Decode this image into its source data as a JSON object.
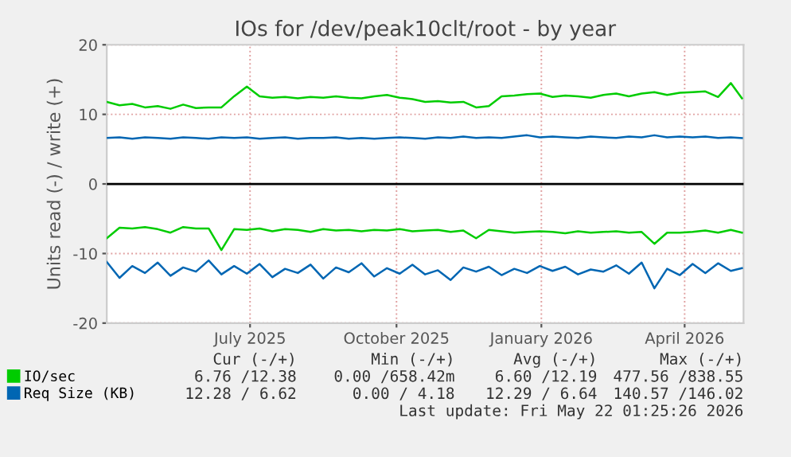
{
  "chart_data": {
    "type": "line",
    "title": "IOs for /dev/peak10clt/root - by year",
    "ylabel": "Units read (-) / write (+)",
    "x": [
      "2025-04-17",
      "2025-04-25",
      "2025-05-03",
      "2025-05-11",
      "2025-05-19",
      "2025-05-27",
      "2025-06-04",
      "2025-06-12",
      "2025-06-20",
      "2025-06-28",
      "2025-07-06",
      "2025-07-14",
      "2025-07-22",
      "2025-07-30",
      "2025-08-07",
      "2025-08-15",
      "2025-08-23",
      "2025-08-31",
      "2025-09-08",
      "2025-09-16",
      "2025-09-24",
      "2025-10-02",
      "2025-10-10",
      "2025-10-18",
      "2025-10-26",
      "2025-11-03",
      "2025-11-11",
      "2025-11-19",
      "2025-11-27",
      "2025-12-05",
      "2025-12-13",
      "2025-12-21",
      "2025-12-29",
      "2026-01-06",
      "2026-01-14",
      "2026-01-22",
      "2026-01-30",
      "2026-02-07",
      "2026-02-15",
      "2026-02-23",
      "2026-03-03",
      "2026-03-11",
      "2026-03-19",
      "2026-03-27",
      "2026-04-04",
      "2026-04-12",
      "2026-04-20",
      "2026-04-28",
      "2026-05-06",
      "2026-05-14",
      "2026-05-21"
    ],
    "series": [
      {
        "name": "IO/sec",
        "color": "#00cc00",
        "values": [
          11.8,
          11.3,
          11.5,
          11.0,
          11.2,
          10.8,
          11.4,
          10.9,
          11.0,
          11.0,
          12.6,
          14.0,
          12.6,
          12.4,
          12.5,
          12.3,
          12.5,
          12.4,
          12.6,
          12.4,
          12.3,
          12.6,
          12.8,
          12.4,
          12.2,
          11.8,
          11.9,
          11.7,
          11.8,
          11.0,
          11.2,
          12.6,
          12.7,
          12.9,
          13.0,
          12.5,
          12.7,
          12.6,
          12.4,
          12.8,
          13.0,
          12.6,
          13.0,
          13.2,
          12.8,
          13.1,
          13.2,
          13.3,
          12.5,
          14.5,
          12.3
        ]
      },
      {
        "color": "#00cc00",
        "values": [
          -7.8,
          -6.3,
          -6.4,
          -6.2,
          -6.5,
          -7.0,
          -6.2,
          -6.4,
          -6.4,
          -9.5,
          -6.5,
          -6.6,
          -6.4,
          -6.8,
          -6.5,
          -6.6,
          -6.9,
          -6.5,
          -6.7,
          -6.6,
          -6.8,
          -6.6,
          -6.7,
          -6.5,
          -6.8,
          -6.7,
          -6.6,
          -6.9,
          -6.7,
          -7.8,
          -6.6,
          -6.8,
          -7.0,
          -6.9,
          -6.8,
          -6.9,
          -7.1,
          -6.8,
          -7.0,
          -6.9,
          -6.8,
          -7.0,
          -6.9,
          -8.6,
          -7.0,
          -7.0,
          -6.9,
          -6.7,
          -7.0,
          -6.6,
          -7.0
        ]
      },
      {
        "name": "Req Size (KB)",
        "color": "#0066b3",
        "values": [
          6.6,
          6.7,
          6.5,
          6.7,
          6.6,
          6.5,
          6.7,
          6.6,
          6.5,
          6.7,
          6.6,
          6.7,
          6.5,
          6.6,
          6.7,
          6.5,
          6.6,
          6.6,
          6.7,
          6.5,
          6.6,
          6.5,
          6.6,
          6.7,
          6.6,
          6.5,
          6.7,
          6.6,
          6.8,
          6.6,
          6.7,
          6.6,
          6.8,
          7.0,
          6.7,
          6.8,
          6.7,
          6.6,
          6.8,
          6.7,
          6.6,
          6.8,
          6.7,
          7.0,
          6.7,
          6.8,
          6.7,
          6.8,
          6.6,
          6.7,
          6.6
        ]
      },
      {
        "color": "#0066b3",
        "values": [
          -11.2,
          -13.5,
          -11.8,
          -12.8,
          -11.3,
          -13.2,
          -12.0,
          -12.6,
          -11.0,
          -13.0,
          -11.8,
          -12.9,
          -11.5,
          -13.4,
          -12.2,
          -12.8,
          -11.6,
          -13.6,
          -12.0,
          -12.7,
          -11.4,
          -13.3,
          -12.1,
          -12.9,
          -11.6,
          -13.0,
          -12.4,
          -13.8,
          -12.0,
          -12.6,
          -11.9,
          -13.1,
          -12.2,
          -12.8,
          -11.8,
          -12.5,
          -11.9,
          -13.0,
          -12.3,
          -12.6,
          -11.7,
          -12.9,
          -11.3,
          -15.0,
          -12.2,
          -13.1,
          -11.5,
          -12.8,
          -11.4,
          -12.5,
          -12.1
        ]
      }
    ],
    "ylim": [
      -20,
      20
    ],
    "yticks": [
      -20,
      -10,
      0,
      10,
      20
    ],
    "xlim": [
      "2025-04-17",
      "2026-05-22"
    ],
    "xticks": [
      {
        "value": "2025-07-16",
        "label": "July 2025"
      },
      {
        "value": "2025-10-16",
        "label": "October 2025"
      },
      {
        "value": "2026-01-15",
        "label": "January 2026"
      },
      {
        "value": "2026-04-15",
        "label": "April 2026"
      }
    ],
    "ref_lines": [
      {
        "axis": "y",
        "value": 0,
        "color": "#000000"
      }
    ],
    "grid": true,
    "legend": "bottom left",
    "marker": "none",
    "line_style": "solid",
    "annotations": [
      "Cur (-/+)",
      "Min (-/+)",
      "Avg (-/+)",
      "Max (-/+)",
      "6.76 /12.38",
      "0.00 /658.42m",
      "6.60 /12.19",
      "477.56 /838.55",
      "12.28 / 6.62",
      "0.00 / 4.18",
      "12.29 / 6.64",
      "140.57 /146.02",
      "Last update: Fri May 22 01:25:26 2026"
    ]
  }
}
